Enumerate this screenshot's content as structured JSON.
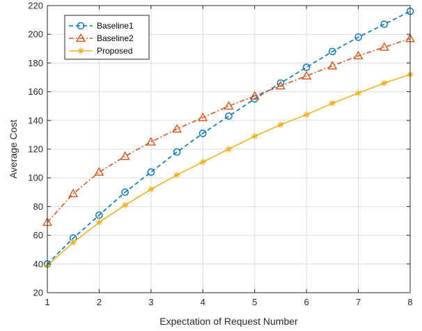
{
  "chart_data": {
    "type": "line",
    "title": "",
    "xlabel": "Expectation of Request Number",
    "ylabel": "Average Cost",
    "xlim": [
      1,
      8
    ],
    "ylim": [
      20,
      220
    ],
    "xticks": [
      1,
      2,
      3,
      4,
      5,
      6,
      7,
      8
    ],
    "yticks": [
      20,
      40,
      60,
      80,
      100,
      120,
      140,
      160,
      180,
      200,
      220
    ],
    "grid": true,
    "legend_position": "top-left",
    "x": [
      1,
      1.5,
      2,
      2.5,
      3,
      3.5,
      4,
      4.5,
      5,
      5.5,
      6,
      6.5,
      7,
      7.5,
      8
    ],
    "series": [
      {
        "name": "Baseline1",
        "color": "#0072BD",
        "line_style": "dashed",
        "marker": "circle",
        "values": [
          40,
          58,
          74,
          90,
          104,
          118,
          131,
          143,
          155,
          166,
          177,
          188,
          198,
          207,
          216
        ]
      },
      {
        "name": "Baseline2",
        "color": "#D95319",
        "line_style": "dash-dot",
        "marker": "triangle",
        "values": [
          69,
          89,
          104,
          115,
          125,
          134,
          142,
          150,
          157,
          164,
          171,
          178,
          185,
          191,
          197
        ]
      },
      {
        "name": "Proposed",
        "color": "#EDB120",
        "line_style": "solid",
        "marker": "asterisk",
        "values": [
          39,
          55,
          69,
          81,
          92,
          102,
          111,
          120,
          129,
          137,
          144,
          152,
          159,
          166,
          172
        ]
      }
    ]
  }
}
